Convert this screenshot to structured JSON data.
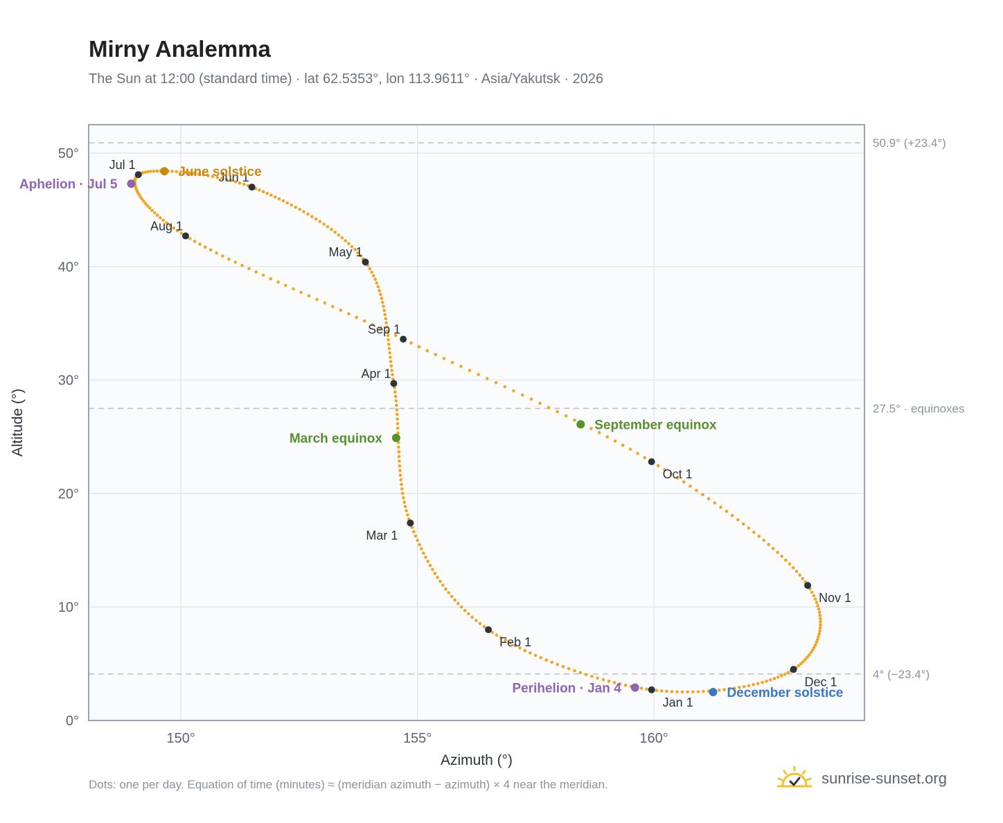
{
  "title": "Mirny Analemma",
  "subtitle": "The Sun at 12:00 (standard time) · lat 62.5353°, lon 113.9611° · Asia/Yakutsk · 2026",
  "footnote": "Dots: one per day. Equation of time (minutes) ≈ (meridian azimuth − azimuth) × 4 near the meridian.",
  "brand": "sunrise-sunset.org",
  "colors": {
    "path": "#f2a524",
    "month_marker": "#2d333b",
    "solstice_june": "#c88a10",
    "equinox": "#5a8f2e",
    "aphelion": "#8e63b5",
    "solstice_december": "#3a78c3",
    "brand_sun": "#f2c12e"
  },
  "chart_data": {
    "type": "scatter",
    "xlabel": "Azimuth (°)",
    "ylabel": "Altitude (°)",
    "xlim": [
      148.05,
      164.45
    ],
    "ylim": [
      0,
      52.5
    ],
    "xticks": [
      150,
      155,
      160
    ],
    "xtick_labels": [
      "150°",
      "155°",
      "160°"
    ],
    "yticks": [
      0,
      10,
      20,
      30,
      40,
      50
    ],
    "ytick_labels": [
      "0°",
      "10°",
      "20°",
      "30°",
      "40°",
      "50°"
    ],
    "grid": true,
    "reference_lines": [
      {
        "y": 50.9,
        "label": "50.9° (+23.4°)"
      },
      {
        "y": 27.5,
        "label": "27.5° · equinoxes"
      },
      {
        "y": 4.1,
        "label": "4° (−23.4°)"
      }
    ],
    "path_anchors": [
      {
        "az": 159.95,
        "alt": 2.7
      },
      {
        "az": 156.5,
        "alt": 8.0
      },
      {
        "az": 154.85,
        "alt": 17.4
      },
      {
        "az": 154.5,
        "alt": 29.7
      },
      {
        "az": 153.9,
        "alt": 40.4
      },
      {
        "az": 151.5,
        "alt": 47.0
      },
      {
        "az": 149.1,
        "alt": 48.1
      },
      {
        "az": 150.1,
        "alt": 42.7
      },
      {
        "az": 154.7,
        "alt": 33.6
      },
      {
        "az": 159.95,
        "alt": 22.8
      },
      {
        "az": 163.25,
        "alt": 11.9
      },
      {
        "az": 162.95,
        "alt": 4.5
      }
    ],
    "month_markers": [
      {
        "label": "Jan 1",
        "az": 159.95,
        "alt": 2.7,
        "anchor": "below-right"
      },
      {
        "label": "Feb 1",
        "az": 156.5,
        "alt": 8.0,
        "anchor": "below-right"
      },
      {
        "label": "Mar 1",
        "az": 154.85,
        "alt": 17.4,
        "anchor": "below-left"
      },
      {
        "label": "Apr 1",
        "az": 154.5,
        "alt": 29.7,
        "anchor": "above-left"
      },
      {
        "label": "May 1",
        "az": 153.9,
        "alt": 40.4,
        "anchor": "above-left"
      },
      {
        "label": "Jun 1",
        "az": 151.5,
        "alt": 47.0,
        "anchor": "above-left"
      },
      {
        "label": "Jul 1",
        "az": 149.1,
        "alt": 48.1,
        "anchor": "above-left"
      },
      {
        "label": "Aug 1",
        "az": 150.1,
        "alt": 42.7,
        "anchor": "above-left"
      },
      {
        "label": "Sep 1",
        "az": 154.7,
        "alt": 33.6,
        "anchor": "above-left"
      },
      {
        "label": "Oct 1",
        "az": 159.95,
        "alt": 22.8,
        "anchor": "below-right"
      },
      {
        "label": "Nov 1",
        "az": 163.25,
        "alt": 11.9,
        "anchor": "below-right"
      },
      {
        "label": "Dec 1",
        "az": 162.95,
        "alt": 4.5,
        "anchor": "below-right"
      }
    ],
    "events": [
      {
        "label": "June solstice",
        "az": 149.65,
        "alt": 48.4,
        "color": "#c88a10",
        "side": "right"
      },
      {
        "label": "March equinox",
        "az": 154.55,
        "alt": 24.9,
        "color": "#5a8f2e",
        "side": "left"
      },
      {
        "label": "September equinox",
        "az": 158.45,
        "alt": 26.1,
        "color": "#5a8f2e",
        "side": "right"
      },
      {
        "label": "December solstice",
        "az": 161.25,
        "alt": 2.5,
        "color": "#3a78c3",
        "side": "right"
      },
      {
        "label": "Aphelion · Jul 5",
        "az": 148.95,
        "alt": 47.3,
        "color": "#8e63b5",
        "side": "left"
      },
      {
        "label": "Perihelion · Jan 4",
        "az": 159.6,
        "alt": 2.9,
        "color": "#8e63b5",
        "side": "left"
      }
    ]
  }
}
